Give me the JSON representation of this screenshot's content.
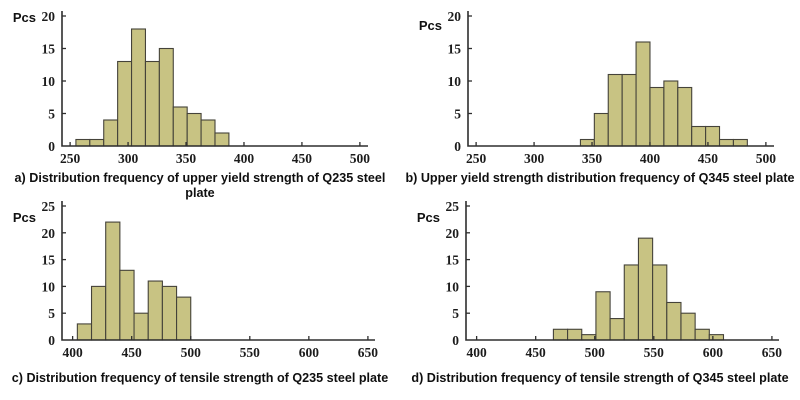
{
  "colors": {
    "background": "#ffffff",
    "bar_fill": "#c8c383",
    "bar_stroke": "#45433a",
    "axis": "#2e2e2e",
    "tick_text": "#1c1c1c",
    "caption_text": "#0f0f0f"
  },
  "chart_data": [
    {
      "id": "a",
      "type": "bar",
      "caption": "a) Distribution frequency of upper yield strength of Q235 steel plate",
      "ylabel": "Pcs",
      "xlabel": "",
      "grid": false,
      "legend": "none",
      "xlim": [
        243,
        507
      ],
      "ylim": [
        0,
        20
      ],
      "x_ticks": [
        250,
        300,
        350,
        400,
        450,
        500
      ],
      "y_ticks": [
        0,
        5,
        10,
        15,
        20
      ],
      "bins": [
        {
          "x0": 255,
          "x1": 267,
          "n": 1
        },
        {
          "x0": 267,
          "x1": 279,
          "n": 1
        },
        {
          "x0": 279,
          "x1": 291,
          "n": 4
        },
        {
          "x0": 291,
          "x1": 303,
          "n": 13
        },
        {
          "x0": 303,
          "x1": 315,
          "n": 18
        },
        {
          "x0": 315,
          "x1": 327,
          "n": 13
        },
        {
          "x0": 327,
          "x1": 339,
          "n": 15
        },
        {
          "x0": 339,
          "x1": 351,
          "n": 6
        },
        {
          "x0": 351,
          "x1": 363,
          "n": 5
        },
        {
          "x0": 363,
          "x1": 375,
          "n": 4
        },
        {
          "x0": 375,
          "x1": 387,
          "n": 2
        }
      ]
    },
    {
      "id": "b",
      "type": "bar",
      "caption": "b) Upper yield strength distribution frequency of Q345 steel plate",
      "ylabel": "Pcs",
      "xlabel": "",
      "grid": false,
      "legend": "none",
      "xlim": [
        243,
        507
      ],
      "ylim": [
        0,
        20
      ],
      "x_ticks": [
        250,
        300,
        350,
        400,
        450,
        500
      ],
      "y_ticks": [
        0,
        5,
        10,
        15,
        20
      ],
      "bins": [
        {
          "x0": 340,
          "x1": 352,
          "n": 1
        },
        {
          "x0": 352,
          "x1": 364,
          "n": 5
        },
        {
          "x0": 364,
          "x1": 376,
          "n": 11
        },
        {
          "x0": 376,
          "x1": 388,
          "n": 11
        },
        {
          "x0": 388,
          "x1": 400,
          "n": 16
        },
        {
          "x0": 400,
          "x1": 412,
          "n": 9
        },
        {
          "x0": 412,
          "x1": 424,
          "n": 10
        },
        {
          "x0": 424,
          "x1": 436,
          "n": 9
        },
        {
          "x0": 436,
          "x1": 448,
          "n": 3
        },
        {
          "x0": 448,
          "x1": 460,
          "n": 3
        },
        {
          "x0": 460,
          "x1": 472,
          "n": 1
        },
        {
          "x0": 472,
          "x1": 484,
          "n": 1
        }
      ]
    },
    {
      "id": "c",
      "type": "bar",
      "caption": "c) Distribution frequency of tensile strength of Q235 steel plate",
      "ylabel": "Pcs",
      "xlabel": "",
      "grid": false,
      "legend": "none",
      "xlim": [
        391,
        656
      ],
      "ylim": [
        0,
        25
      ],
      "x_ticks": [
        400,
        450,
        500,
        550,
        600,
        650
      ],
      "y_ticks": [
        0,
        5,
        10,
        15,
        20,
        25
      ],
      "bins": [
        {
          "x0": 404,
          "x1": 416,
          "n": 3
        },
        {
          "x0": 416,
          "x1": 428,
          "n": 10
        },
        {
          "x0": 428,
          "x1": 440,
          "n": 22
        },
        {
          "x0": 440,
          "x1": 452,
          "n": 13
        },
        {
          "x0": 452,
          "x1": 464,
          "n": 5
        },
        {
          "x0": 464,
          "x1": 476,
          "n": 11
        },
        {
          "x0": 476,
          "x1": 488,
          "n": 10
        },
        {
          "x0": 488,
          "x1": 500,
          "n": 8
        }
      ]
    },
    {
      "id": "d",
      "type": "bar",
      "caption": "d) Distribution frequency of tensile strength of Q345 steel plate",
      "ylabel": "Pcs",
      "xlabel": "",
      "grid": false,
      "legend": "none",
      "xlim": [
        391,
        656
      ],
      "ylim": [
        0,
        25
      ],
      "x_ticks": [
        400,
        450,
        500,
        550,
        600,
        650
      ],
      "y_ticks": [
        0,
        5,
        10,
        15,
        20,
        25
      ],
      "bins": [
        {
          "x0": 465,
          "x1": 477,
          "n": 2
        },
        {
          "x0": 477,
          "x1": 489,
          "n": 2
        },
        {
          "x0": 489,
          "x1": 501,
          "n": 1
        },
        {
          "x0": 501,
          "x1": 513,
          "n": 9
        },
        {
          "x0": 513,
          "x1": 525,
          "n": 4
        },
        {
          "x0": 525,
          "x1": 537,
          "n": 14
        },
        {
          "x0": 537,
          "x1": 549,
          "n": 19
        },
        {
          "x0": 549,
          "x1": 561,
          "n": 14
        },
        {
          "x0": 561,
          "x1": 573,
          "n": 7
        },
        {
          "x0": 573,
          "x1": 585,
          "n": 5
        },
        {
          "x0": 585,
          "x1": 597,
          "n": 2
        },
        {
          "x0": 597,
          "x1": 609,
          "n": 1
        }
      ]
    }
  ]
}
